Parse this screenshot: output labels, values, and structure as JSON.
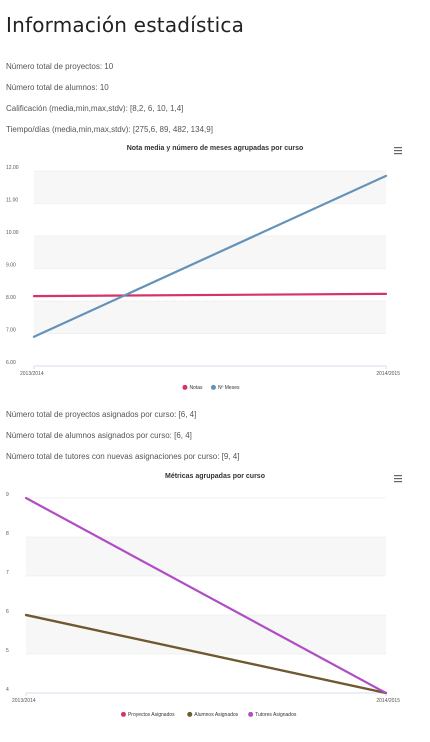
{
  "page": {
    "title": "Información estadística"
  },
  "stats_top": [
    "Número total de proyectos: 10",
    "Número total de alumnos: 10",
    "Calificación (media,min,max,stdv): [8,2, 6, 10, 1,4]",
    "Tiempo/días (media,min,max,stdv): [275,6, 89, 482, 134,9]"
  ],
  "stats_mid": [
    "Número total de proyectos asignados por curso: [6, 4]",
    "Número total de alumnos asignados por curso: [6, 4]",
    "Número total de tutores con nuevas asignaciones por curso: [9, 4]"
  ],
  "chart_data": [
    {
      "type": "line",
      "title": "Nota media y número de meses agrupadas por curso",
      "categories": [
        "2013/2014",
        "2014/2015"
      ],
      "ylim": [
        6,
        12
      ],
      "yticks": [
        "6.00",
        "7.00",
        "8.00",
        "9.00",
        "10.00",
        "11.00",
        "12.00"
      ],
      "series": [
        {
          "name": "Notas",
          "values": [
            8.15,
            8.22
          ],
          "color": "#d6336c"
        },
        {
          "name": "Nº Meses",
          "values": [
            6.9,
            11.85
          ],
          "color": "#6492b8"
        }
      ],
      "legend": "bottom-center",
      "grid": true
    },
    {
      "type": "line",
      "title": "Métricas agrupadas por curso",
      "categories": [
        "2013/2014",
        "2014/2015"
      ],
      "ylim": [
        4,
        9
      ],
      "yticks": [
        "4",
        "5",
        "6",
        "7",
        "8",
        "9"
      ],
      "series": [
        {
          "name": "Proyectos Asignados",
          "values": [
            6,
            4
          ],
          "color": "#d6336c"
        },
        {
          "name": "Alumnos Asignados",
          "values": [
            6,
            4
          ],
          "color": "#6b5c2e"
        },
        {
          "name": "Tutores Asignados",
          "values": [
            9,
            4
          ],
          "color": "#b04cc4"
        }
      ],
      "legend": "bottom-center",
      "grid": true
    }
  ]
}
